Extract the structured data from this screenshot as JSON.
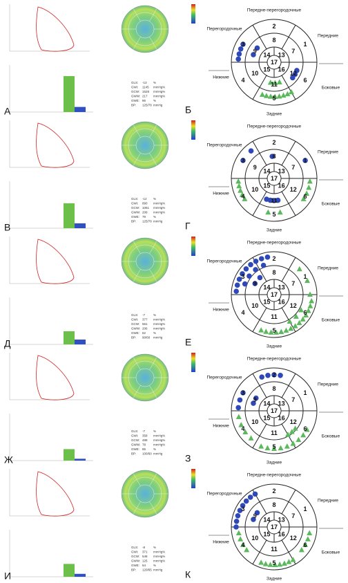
{
  "panels": [
    {
      "letter": "А",
      "bar_ylim": [
        0,
        2000
      ],
      "metrics": [
        {
          "label": "GLS:",
          "value": -13,
          "unit": "%"
        },
        {
          "label": "GWI:",
          "value": 1145,
          "unit": "mmHg%"
        },
        {
          "label": "GCW:",
          "value": 1528,
          "unit": "mmHg%"
        },
        {
          "label": "GWW:",
          "value": 217,
          "unit": "mmHg%"
        },
        {
          "label": "GWE:",
          "value": 86,
          "unit": "%"
        },
        {
          "label": "BP:",
          "value": "125/78",
          "unit": "mmHg"
        }
      ]
    },
    {
      "letter": "В",
      "bar_ylim": [
        0,
        2000
      ],
      "metrics": [
        {
          "label": "GLS:",
          "value": -12,
          "unit": "%"
        },
        {
          "label": "GWI:",
          "value": 890,
          "unit": "mmHg%"
        },
        {
          "label": "GCW:",
          "value": 1061,
          "unit": "mmHg%"
        },
        {
          "label": "GWW:",
          "value": 208,
          "unit": "mmHg%"
        },
        {
          "label": "GWE:",
          "value": 79,
          "unit": "%"
        },
        {
          "label": "BP:",
          "value": "125/78",
          "unit": "mmHg"
        }
      ]
    },
    {
      "letter": "Д",
      "bar_ylim": [
        0,
        2000
      ],
      "metrics": [
        {
          "label": "GLS:",
          "value": -7,
          "unit": "%"
        },
        {
          "label": "GWI:",
          "value": 377,
          "unit": "mmHg%"
        },
        {
          "label": "GCW:",
          "value": 561,
          "unit": "mmHg%"
        },
        {
          "label": "GWW:",
          "value": 206,
          "unit": "mmHg%"
        },
        {
          "label": "GWE:",
          "value": 62,
          "unit": "%"
        },
        {
          "label": "BP:",
          "value": "90/60",
          "unit": "mmHg"
        }
      ]
    },
    {
      "letter": "Ж",
      "bar_ylim": [
        0,
        2000
      ],
      "metrics": [
        {
          "label": "GLS:",
          "value": -7,
          "unit": "%"
        },
        {
          "label": "GWI:",
          "value": 358,
          "unit": "mmHg%"
        },
        {
          "label": "GCW:",
          "value": 488,
          "unit": "mmHg%"
        },
        {
          "label": "GWW:",
          "value": 78,
          "unit": "mmHg%"
        },
        {
          "label": "GWE:",
          "value": 85,
          "unit": "%"
        },
        {
          "label": "BP:",
          "value": "100/60",
          "unit": "mmHg"
        }
      ]
    },
    {
      "letter": "И",
      "bar_ylim": [
        0,
        2000
      ],
      "metrics": [
        {
          "label": "GLS:",
          "value": -8,
          "unit": "%"
        },
        {
          "label": "GWI:",
          "value": 371,
          "unit": "mmHg%"
        },
        {
          "label": "GCW:",
          "value": 548,
          "unit": "mmHg%"
        },
        {
          "label": "GWW:",
          "value": 125,
          "unit": "mmHg%"
        },
        {
          "label": "GWE:",
          "value": 64,
          "unit": "%"
        },
        {
          "label": "BP:",
          "value": "120/65",
          "unit": "mmHg"
        }
      ]
    }
  ],
  "diagrams": [
    {
      "letter": "Б"
    },
    {
      "letter": "Г"
    },
    {
      "letter": "Е"
    },
    {
      "letter": "З"
    },
    {
      "letter": "К"
    }
  ],
  "segments": [
    "1",
    "2",
    "3",
    "4",
    "5",
    "6",
    "7",
    "8",
    "9",
    "10",
    "11",
    "12",
    "13",
    "14",
    "15",
    "16",
    "17"
  ],
  "regions": {
    "top": "Передне-перегородочные",
    "upper_right": "Передние",
    "lower_right": "Боковые",
    "bottom": "Задние",
    "lower_left": "Нижние",
    "upper_left": "Перегородочные"
  }
}
